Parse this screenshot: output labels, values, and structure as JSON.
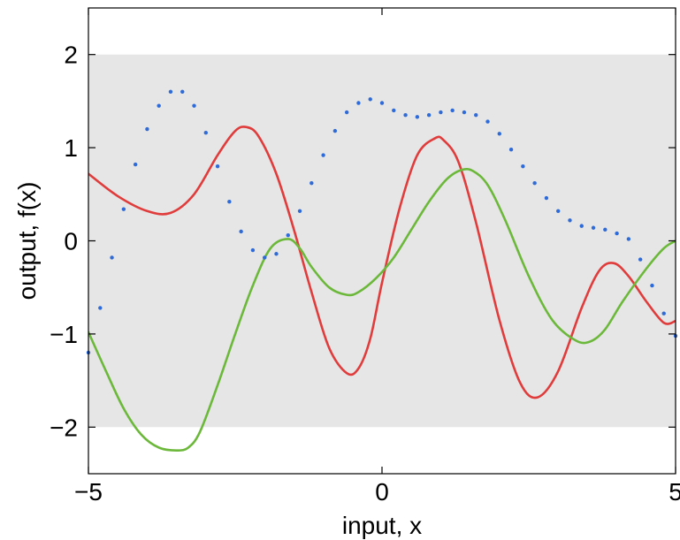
{
  "chart_data": {
    "type": "line",
    "xlabel": "input, x",
    "ylabel": "output, f(x)",
    "xlim": [
      -5,
      5
    ],
    "ylim": [
      -2.5,
      2.5
    ],
    "x_ticks": [
      -5,
      0,
      5
    ],
    "y_ticks": [
      -2,
      -1,
      0,
      1,
      2
    ],
    "x_tick_labels": [
      "−5",
      "0",
      "5"
    ],
    "y_tick_labels": [
      "−2",
      "−1",
      "0",
      "1",
      "2"
    ],
    "band": {
      "from": -2,
      "to": 2,
      "color": "#e6e6e6"
    },
    "grid": false,
    "legend": "none",
    "series": [
      {
        "style": "line",
        "color": "#e03c3c",
        "x": [
          -5,
          -4.5,
          -4,
          -3.6,
          -3.2,
          -2.8,
          -2.5,
          -2.3,
          -2.1,
          -1.8,
          -1.5,
          -1.2,
          -0.9,
          -0.6,
          -0.4,
          -0.2,
          0,
          0.3,
          0.6,
          0.9,
          1.05,
          1.3,
          1.6,
          2.0,
          2.35,
          2.65,
          3.0,
          3.4,
          3.7,
          3.95,
          4.2,
          4.5,
          4.8,
          5.0
        ],
        "y": [
          0.72,
          0.48,
          0.32,
          0.3,
          0.5,
          0.92,
          1.18,
          1.22,
          1.12,
          0.72,
          0.12,
          -0.55,
          -1.15,
          -1.42,
          -1.37,
          -1.05,
          -0.45,
          0.35,
          0.92,
          1.1,
          1.08,
          0.85,
          0.2,
          -0.85,
          -1.52,
          -1.68,
          -1.4,
          -0.72,
          -0.32,
          -0.24,
          -0.38,
          -0.65,
          -0.88,
          -0.86
        ]
      },
      {
        "style": "line",
        "color": "#6cb83a",
        "x": [
          -5,
          -4.7,
          -4.4,
          -4.1,
          -3.8,
          -3.5,
          -3.3,
          -3.1,
          -2.8,
          -2.5,
          -2.2,
          -1.9,
          -1.6,
          -1.4,
          -1.2,
          -0.9,
          -0.6,
          -0.4,
          -0.1,
          0.2,
          0.5,
          0.8,
          1.1,
          1.35,
          1.55,
          1.8,
          2.1,
          2.5,
          2.9,
          3.3,
          3.55,
          3.8,
          4.1,
          4.5,
          4.8,
          5.0
        ],
        "y": [
          -0.98,
          -1.4,
          -1.8,
          -2.08,
          -2.22,
          -2.25,
          -2.22,
          -2.05,
          -1.55,
          -1.0,
          -0.48,
          -0.08,
          0.02,
          -0.08,
          -0.28,
          -0.5,
          -0.58,
          -0.55,
          -0.4,
          -0.18,
          0.12,
          0.42,
          0.66,
          0.76,
          0.75,
          0.6,
          0.22,
          -0.38,
          -0.85,
          -1.07,
          -1.08,
          -0.95,
          -0.65,
          -0.3,
          -0.08,
          0.0
        ]
      },
      {
        "style": "points",
        "color": "#2f6bd8",
        "x": [
          -5.0,
          -4.8,
          -4.6,
          -4.4,
          -4.2,
          -4.0,
          -3.8,
          -3.6,
          -3.4,
          -3.2,
          -3.0,
          -2.8,
          -2.6,
          -2.4,
          -2.2,
          -2.0,
          -1.8,
          -1.6,
          -1.4,
          -1.2,
          -1.0,
          -0.8,
          -0.6,
          -0.4,
          -0.2,
          0.0,
          0.2,
          0.4,
          0.6,
          0.8,
          1.0,
          1.2,
          1.4,
          1.6,
          1.8,
          2.0,
          2.2,
          2.4,
          2.6,
          2.8,
          3.0,
          3.2,
          3.4,
          3.6,
          3.8,
          4.0,
          4.2,
          4.4,
          4.6,
          4.8,
          5.0
        ],
        "y": [
          -1.2,
          -0.72,
          -0.18,
          0.34,
          0.82,
          1.2,
          1.45,
          1.6,
          1.6,
          1.45,
          1.16,
          0.8,
          0.42,
          0.1,
          -0.1,
          -0.18,
          -0.14,
          0.06,
          0.32,
          0.62,
          0.92,
          1.18,
          1.38,
          1.48,
          1.52,
          1.48,
          1.4,
          1.35,
          1.33,
          1.35,
          1.38,
          1.4,
          1.38,
          1.35,
          1.28,
          1.15,
          0.98,
          0.8,
          0.62,
          0.46,
          0.32,
          0.22,
          0.16,
          0.14,
          0.12,
          0.08,
          0.02,
          -0.2,
          -0.48,
          -0.78,
          -1.02
        ]
      }
    ]
  }
}
